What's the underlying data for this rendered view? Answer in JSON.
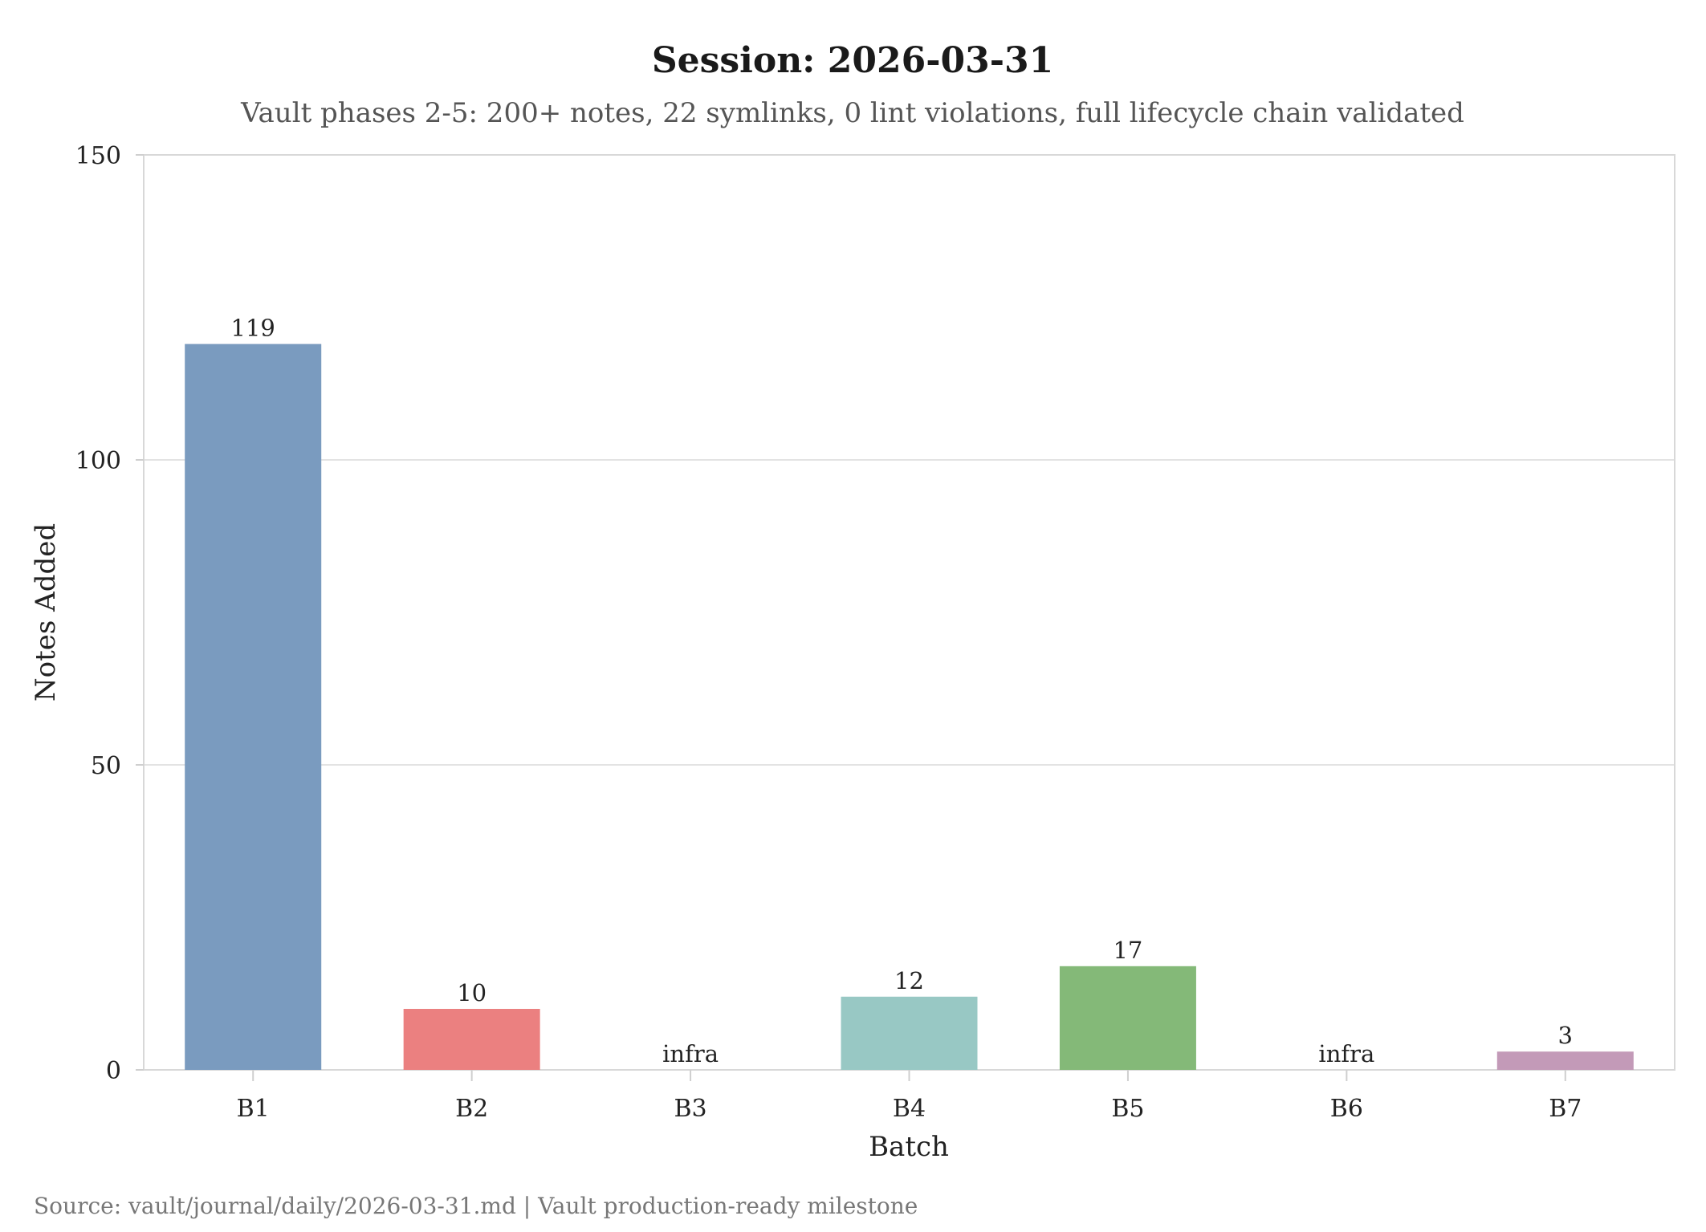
{
  "chart_data": {
    "type": "bar",
    "title": "Session: 2026-03-31",
    "subtitle": "Vault phases 2-5: 200+ notes, 22 symlinks, 0 lint violations, full lifecycle chain validated",
    "xlabel": "Batch",
    "ylabel": "Notes Added",
    "ylim": [
      0,
      150
    ],
    "yticks": [
      0,
      50,
      100,
      150
    ],
    "grid": true,
    "categories": [
      "B1",
      "B2",
      "B3",
      "B4",
      "B5",
      "B6",
      "B7"
    ],
    "values": [
      119,
      10,
      0,
      12,
      17,
      0,
      3
    ],
    "data_labels": [
      "119",
      "10",
      "infra",
      "12",
      "17",
      "infra",
      "3"
    ],
    "colors": [
      "#7a9bbf",
      "#eb8080",
      "#cccccc",
      "#98c8c4",
      "#84b978",
      "#cccccc",
      "#c39ab8"
    ],
    "footer": "Source: vault/journal/daily/2026-03-31.md  |  Vault production-ready milestone"
  }
}
